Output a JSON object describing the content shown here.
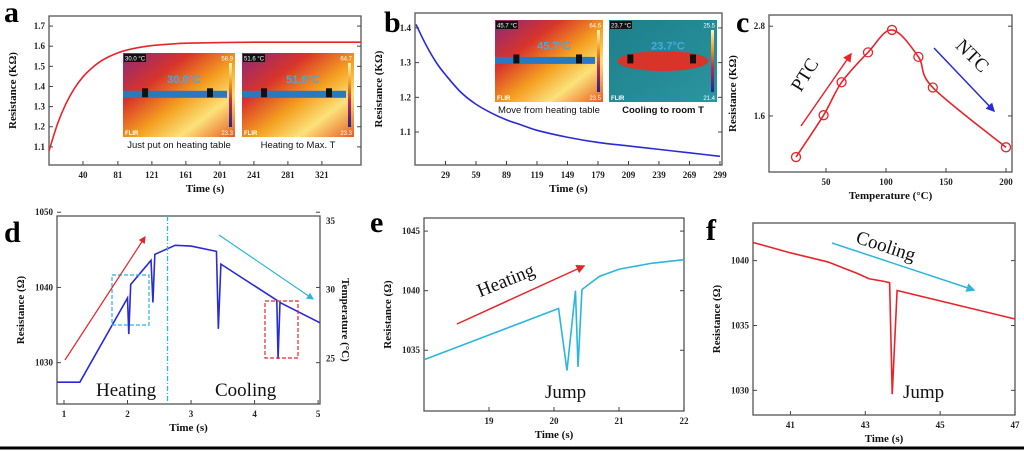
{
  "chart_data": [
    {
      "panel": "a",
      "type": "line",
      "xlabel": "Time (s)",
      "ylabel": "Resistance (KΩ)",
      "xlim": [
        0,
        367
      ],
      "ylim": [
        1.01,
        1.75
      ],
      "xticks": [
        40,
        81,
        121,
        161,
        201,
        241,
        281,
        321
      ],
      "yticks": [
        1.1,
        1.2,
        1.3,
        1.4,
        1.5,
        1.6,
        1.7
      ],
      "series": [
        {
          "color": "#e8242a",
          "x": [
            0,
            10,
            20,
            30,
            40,
            50,
            60,
            70,
            81,
            90,
            100,
            121,
            141,
            161,
            201,
            241,
            281,
            321,
            367
          ],
          "y": [
            1.08,
            1.214,
            1.315,
            1.391,
            1.448,
            1.49,
            1.523,
            1.547,
            1.567,
            1.579,
            1.589,
            1.603,
            1.61,
            1.615,
            1.618,
            1.62,
            1.62,
            1.62,
            1.62
          ]
        }
      ],
      "insets": [
        {
          "caption": "Just put on heating table",
          "spot": "30.0°C",
          "readout": "30.0 °C",
          "max": "58.9",
          "min": "23.3",
          "brand": "FLIR",
          "palette": "hot"
        },
        {
          "caption": "Heating to Max. T",
          "spot": "51.6°C",
          "readout": "51.6 °C",
          "max": "64.7",
          "min": "23.3",
          "brand": "FLIR",
          "palette": "hot"
        }
      ]
    },
    {
      "panel": "b",
      "type": "line",
      "xlabel": "Time (s)",
      "ylabel": "Resistance (KΩ)",
      "xlim": [
        -1,
        301
      ],
      "ylim": [
        1.005,
        1.443
      ],
      "xticks": [
        29,
        59,
        89,
        119,
        149,
        179,
        209,
        239,
        269,
        299
      ],
      "yticks": [
        1.1,
        1.2,
        1.3,
        1.4
      ],
      "series": [
        {
          "color": "#2a2ad8",
          "x": [
            0,
            10,
            20,
            29,
            44,
            59,
            74,
            89,
            104,
            119,
            149,
            179,
            209,
            239,
            269,
            299
          ],
          "y": [
            1.41,
            1.35,
            1.3,
            1.265,
            1.215,
            1.18,
            1.155,
            1.135,
            1.12,
            1.105,
            1.085,
            1.07,
            1.06,
            1.05,
            1.04,
            1.03
          ]
        }
      ],
      "insets": [
        {
          "caption": "Move from heating table",
          "spot": "45.7°C",
          "readout": "45.7 °C",
          "max": "64.6",
          "min": "23.5",
          "brand": "FLIR",
          "palette": "hot"
        },
        {
          "caption": "Cooling to room T",
          "spot": "23.7°C",
          "readout": "23.7 °C",
          "max": "25.5",
          "min": "21.4",
          "brand": "FLIR",
          "palette": "cool"
        }
      ]
    },
    {
      "panel": "c",
      "type": "scatter",
      "xlabel": "Temperature (°C)",
      "ylabel": "Resistance (KΩ)",
      "xlim": [
        2.5,
        205
      ],
      "ylim": [
        0.85,
        2.95
      ],
      "xticks": [
        50,
        100,
        150,
        200
      ],
      "yticks": [
        1.6,
        2.8
      ],
      "series": [
        {
          "color": "#e8242a",
          "x": [
            25,
            48,
            63,
            85,
            105,
            127,
            139,
            200
          ],
          "y": [
            1.05,
            1.61,
            2.05,
            2.45,
            2.75,
            2.39,
            1.98,
            1.18
          ]
        }
      ],
      "annotations": [
        {
          "text": "PTC",
          "color": "#e8242a"
        },
        {
          "text": "NTC",
          "color": "#2a2ad8"
        }
      ]
    },
    {
      "panel": "d",
      "type": "line",
      "xlabel": "Time (s)",
      "ylabel": "Resistance (Ω)",
      "ylabel_right": "Temperature (°C)",
      "xlim": [
        0.89,
        5.03
      ],
      "ylim": [
        1024.5,
        1049.5
      ],
      "ylim_right": [
        21.6,
        35.3
      ],
      "xticks": [
        1,
        2,
        3,
        4,
        5
      ],
      "yticks": [
        1030,
        1040,
        1050
      ],
      "yticks_right": [
        25,
        30,
        35
      ],
      "series": [
        {
          "color": "#2a2ad8",
          "x": [
            0.89,
            1.25,
            2.0,
            2.02,
            2.05,
            2.37,
            2.4,
            2.43,
            2.75,
            3.0,
            3.4,
            3.43,
            3.47,
            4.35,
            4.37,
            4.4,
            5.03
          ],
          "y": [
            1027.4,
            1027.4,
            1038.6,
            1033.8,
            1040.4,
            1043.6,
            1038.0,
            1044.4,
            1045.6,
            1045.5,
            1044.8,
            1034.5,
            1043.1,
            1038.3,
            1030.5,
            1038.0,
            1035.3
          ]
        }
      ],
      "divider_x": 2.63,
      "annotations": [
        {
          "text": "Heating",
          "color": "#e8242a"
        },
        {
          "text": "Cooling",
          "color": "#2bb5e0"
        }
      ],
      "highlight_colors": [
        "#2bb5e0",
        "#e8242a"
      ]
    },
    {
      "panel": "e",
      "type": "line",
      "xlabel": "Time (s)",
      "ylabel": "Resistance (Ω)",
      "xlim": [
        18.0,
        22.0
      ],
      "ylim": [
        1029.9,
        1046.1
      ],
      "xticks": [
        19,
        20,
        21,
        22
      ],
      "yticks": [
        1035,
        1040,
        1045
      ],
      "series": [
        {
          "color": "#2bb5e0",
          "x": [
            18.0,
            20.07,
            20.2,
            20.33,
            20.37,
            20.43,
            20.7,
            21.0,
            21.5,
            22.0
          ],
          "y": [
            1034.2,
            1038.5,
            1033.3,
            1040.0,
            1033.6,
            1040.1,
            1041.2,
            1041.8,
            1042.3,
            1042.6
          ]
        }
      ],
      "annotations": [
        {
          "text": "Heating",
          "color": "#e8242a"
        },
        {
          "text": "Jump"
        }
      ]
    },
    {
      "panel": "f",
      "type": "line",
      "xlabel": "Time (s)",
      "ylabel": "Resistance (Ω)",
      "xlim": [
        40.0,
        47.0
      ],
      "ylim": [
        1028.1,
        1042.9
      ],
      "xticks": [
        41,
        43,
        45,
        47
      ],
      "yticks": [
        1030,
        1035,
        1040
      ],
      "series": [
        {
          "color": "#e8242a",
          "x": [
            40.0,
            41.0,
            42.0,
            42.8,
            43.1,
            43.5,
            43.65,
            43.72,
            43.85,
            47.0
          ],
          "y": [
            1041.4,
            1040.6,
            1039.9,
            1039.0,
            1038.6,
            1038.4,
            1038.3,
            1029.7,
            1037.7,
            1035.5
          ]
        }
      ],
      "annotations": [
        {
          "text": "Cooling",
          "color": "#2bb5e0"
        },
        {
          "text": "Jump"
        }
      ]
    }
  ]
}
